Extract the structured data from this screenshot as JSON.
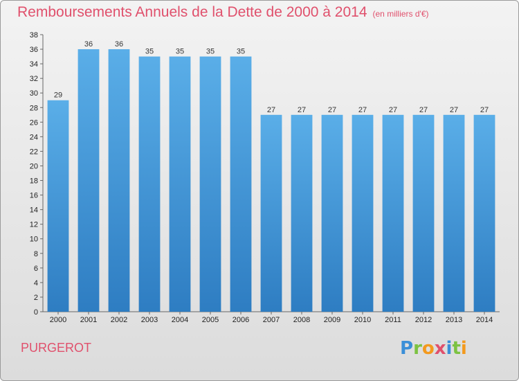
{
  "title": "Remboursements Annuels de la Dette de 2000 à 2014",
  "unit_note": "(en milliers d'€)",
  "commune": "PURGEROT",
  "logo": {
    "letters": [
      "P",
      "r",
      "o",
      "x",
      "i",
      "t",
      "i"
    ],
    "colors": [
      "#3a8fd8",
      "#7cc242",
      "#f39a1e",
      "#e0506c",
      "#3a8fd8",
      "#7cc242",
      "#f39a1e"
    ]
  },
  "colors": {
    "accent": "#e0506c",
    "bar_top": "#5aaee8",
    "bar_bottom": "#2e7dc2"
  },
  "chart_data": {
    "type": "bar",
    "categories": [
      "2000",
      "2001",
      "2002",
      "2003",
      "2004",
      "2005",
      "2006",
      "2007",
      "2008",
      "2009",
      "2010",
      "2011",
      "2012",
      "2013",
      "2014"
    ],
    "values": [
      29,
      36,
      36,
      35,
      35,
      35,
      35,
      27,
      27,
      27,
      27,
      27,
      27,
      27,
      27
    ],
    "title": "Remboursements Annuels de la Dette de 2000 à 2014",
    "xlabel": "",
    "ylabel": "",
    "ylim": [
      0,
      38
    ],
    "yticks": [
      0,
      2,
      4,
      6,
      8,
      10,
      12,
      14,
      16,
      18,
      20,
      22,
      24,
      26,
      28,
      30,
      32,
      34,
      36,
      38
    ],
    "grid": false,
    "data_labels": true
  }
}
